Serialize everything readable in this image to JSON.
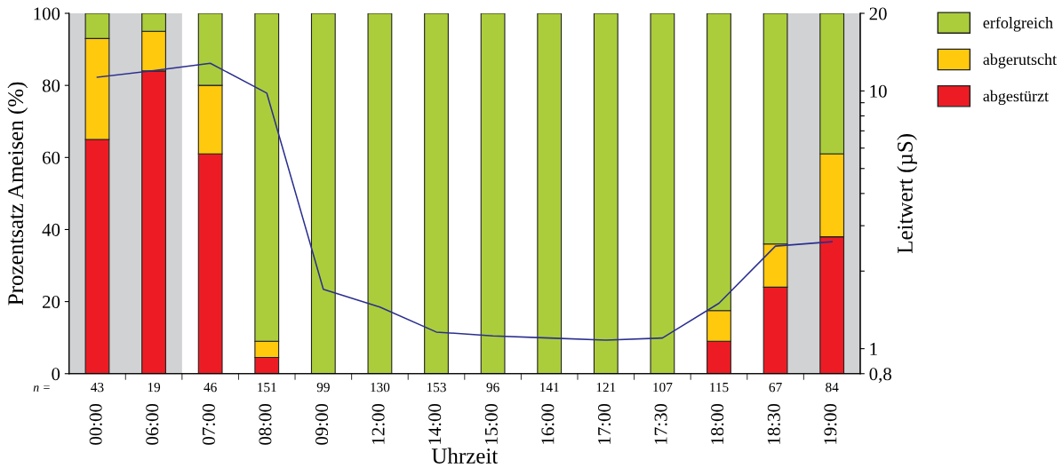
{
  "chart_data": {
    "type": "bar",
    "stacked": true,
    "xlabel": "Uhrzeit",
    "ylabel": "Prozentsatz Ameisen (%)",
    "y2label": "Leitwert (µS)",
    "categories": [
      "00:00",
      "06:00",
      "07:00",
      "08:00",
      "09:00",
      "12:00",
      "14:00",
      "15:00",
      "16:00",
      "17:00",
      "17:30",
      "18:00",
      "18:30",
      "19:00"
    ],
    "series": [
      {
        "name": "abgestürzt",
        "color": "#ed1c24",
        "values": [
          65,
          84,
          61,
          4.5,
          0,
          0,
          0,
          0,
          0,
          0,
          0,
          9,
          24,
          38
        ]
      },
      {
        "name": "abgerutscht",
        "color": "#ffc90e",
        "values": [
          28,
          11,
          19,
          4.5,
          0,
          0,
          0,
          0,
          0,
          0,
          0,
          8.5,
          12,
          23
        ]
      },
      {
        "name": "erfolgreich",
        "color": "#abcd3b",
        "values": [
          7,
          5,
          20,
          91,
          100,
          100,
          100,
          100,
          100,
          100,
          100,
          82.5,
          64,
          39
        ]
      },
      {
        "type": "line",
        "axis": "y2",
        "color": "#2b2f8f",
        "values": [
          11.3,
          12,
          12.8,
          9.8,
          1.7,
          1.45,
          1.16,
          1.12,
          1.1,
          1.08,
          1.1,
          1.5,
          2.5,
          2.6
        ]
      }
    ],
    "ylim": [
      0,
      100
    ],
    "yticks": [
      0,
      20,
      40,
      60,
      80,
      100
    ],
    "log": "y2",
    "y2lim": [
      0.8,
      20
    ],
    "y2ticks": [
      {
        "value": 0.8,
        "label": "0,8"
      },
      1,
      {
        "value": 2,
        "label": null
      },
      {
        "value": 3,
        "label": null
      },
      {
        "value": 4,
        "label": null
      },
      {
        "value": 5,
        "label": null
      },
      {
        "value": 6,
        "label": null
      },
      {
        "value": 7,
        "label": null
      },
      {
        "value": 8,
        "label": null
      },
      {
        "value": 9,
        "label": null
      },
      10,
      20
    ],
    "annotations": [
      "n =",
      "43",
      "19",
      "46",
      "151",
      "99",
      "130",
      "153",
      "96",
      "141",
      "121",
      "107",
      "115",
      "67",
      "84"
    ],
    "legend": "top right",
    "grid": false
  }
}
